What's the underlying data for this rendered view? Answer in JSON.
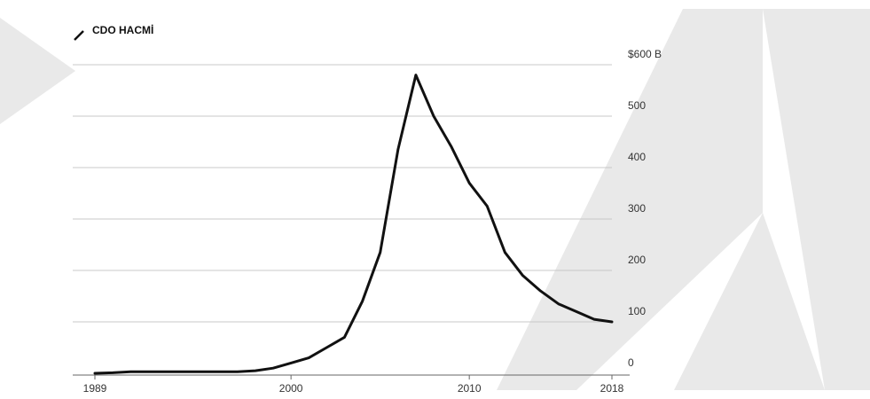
{
  "chart_data": {
    "type": "line",
    "title": "",
    "xlabel": "",
    "ylabel": "",
    "legend": {
      "position": "top-left",
      "entries": [
        "CDO HACMİ"
      ]
    },
    "series": [
      {
        "name": "CDO HACMİ",
        "color": "#111111",
        "x": [
          1989,
          1990,
          1991,
          1992,
          1993,
          1994,
          1995,
          1996,
          1997,
          1998,
          1999,
          2000,
          2001,
          2002,
          2003,
          2004,
          2005,
          2006,
          2007,
          2008,
          2009,
          2010,
          2011,
          2012,
          2013,
          2014,
          2015,
          2016,
          2017,
          2018
        ],
        "y": [
          0,
          1,
          3,
          3,
          3,
          3,
          3,
          3,
          3,
          5,
          10,
          20,
          30,
          50,
          70,
          140,
          235,
          435,
          580,
          500,
          440,
          370,
          325,
          235,
          190,
          160,
          135,
          120,
          105,
          100
        ]
      }
    ],
    "x_ticks": [
      "1989",
      "2000",
      "2010",
      "2018"
    ],
    "y_ticks": [
      "0",
      "100",
      "200",
      "300",
      "400",
      "500",
      "$600 B"
    ],
    "y_tick_values": [
      0,
      100,
      200,
      300,
      400,
      500,
      600
    ],
    "x_tick_values": [
      1989,
      2000,
      2010,
      2018
    ],
    "xlim": [
      1989,
      2018
    ],
    "ylim": [
      0,
      600
    ],
    "grid": true,
    "y_axis_position": "right"
  }
}
